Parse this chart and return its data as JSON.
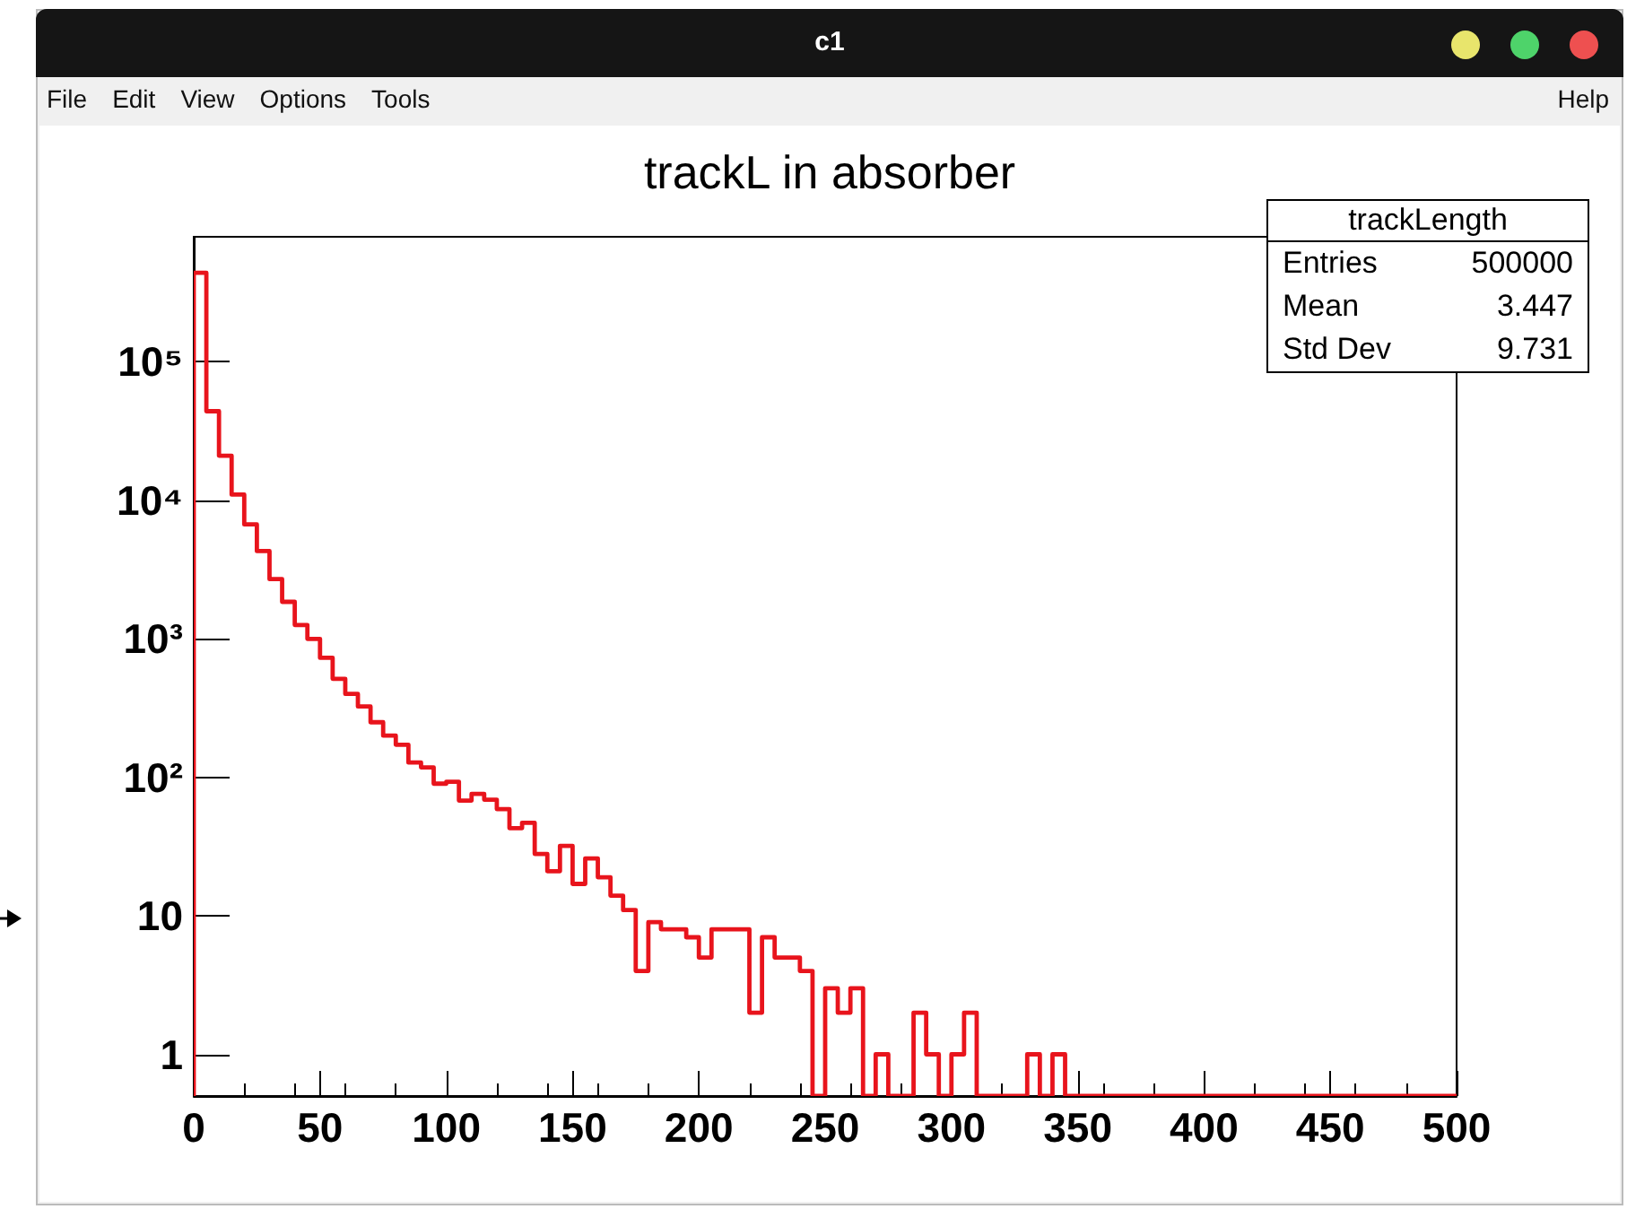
{
  "chart_data": {
    "type": "histogram",
    "title": "trackL in absorber",
    "annotations": [
      "c1",
      "File",
      "Edit",
      "View",
      "Options",
      "Tools",
      "Help",
      "trackLength",
      "Entries",
      "500000",
      "Mean",
      "3.447",
      "Std Dev",
      "9.731"
    ],
    "bins": [
      0,
      5,
      10,
      15,
      20,
      25,
      30,
      35,
      40,
      45,
      50,
      55,
      60,
      65,
      70,
      75,
      80,
      85,
      90,
      95,
      100,
      105,
      110,
      115,
      120,
      125,
      130,
      135,
      140,
      145,
      150,
      155,
      160,
      165,
      170,
      175,
      180,
      185,
      190,
      195,
      200,
      205,
      210,
      215,
      220,
      225,
      230,
      235,
      240,
      245,
      250,
      255,
      260,
      265,
      270,
      275,
      280,
      285,
      290,
      295,
      300,
      305,
      310,
      315,
      320,
      325,
      330,
      335,
      340,
      345,
      350,
      355,
      360,
      365,
      370,
      375,
      380,
      385,
      390,
      395,
      400,
      405,
      410,
      415,
      420,
      425,
      430,
      435,
      440,
      445,
      450,
      455,
      460,
      465,
      470,
      475,
      480,
      485,
      490,
      495,
      500
    ],
    "values": [
      440000,
      44000,
      21000,
      11000,
      6700,
      4300,
      2700,
      1850,
      1260,
      1000,
      730,
      515,
      400,
      325,
      250,
      200,
      172,
      128,
      118,
      90,
      93,
      68,
      76,
      69,
      59,
      43,
      47,
      28,
      21,
      32,
      17,
      26,
      19,
      14,
      11,
      4,
      9,
      8,
      8,
      7,
      5,
      8,
      8,
      8,
      2,
      7,
      5,
      5,
      4,
      null,
      3,
      2,
      3,
      null,
      1,
      null,
      null,
      2,
      1,
      null,
      1,
      2,
      null,
      null,
      null,
      null,
      1,
      null,
      1,
      null,
      null,
      null,
      null,
      null,
      null,
      null,
      null,
      null,
      null,
      null,
      null,
      null,
      null,
      null,
      null,
      null,
      null,
      null,
      null,
      null,
      null,
      null,
      null,
      null,
      null,
      null,
      null,
      null,
      null,
      null
    ],
    "color": "#e8141c",
    "log": "y",
    "xlim": [
      0,
      500
    ],
    "xticks": [
      0,
      50,
      100,
      150,
      200,
      250,
      300,
      350,
      400,
      450,
      500
    ],
    "ylim": [
      0.5,
      800000
    ],
    "yticks": [
      1,
      10,
      {
        "value": 100,
        "label": "10²"
      },
      {
        "value": 1000,
        "label": "10³"
      },
      {
        "value": 10000,
        "label": "10⁴"
      },
      {
        "value": 100000,
        "label": "10⁵"
      }
    ],
    "grid": false
  }
}
